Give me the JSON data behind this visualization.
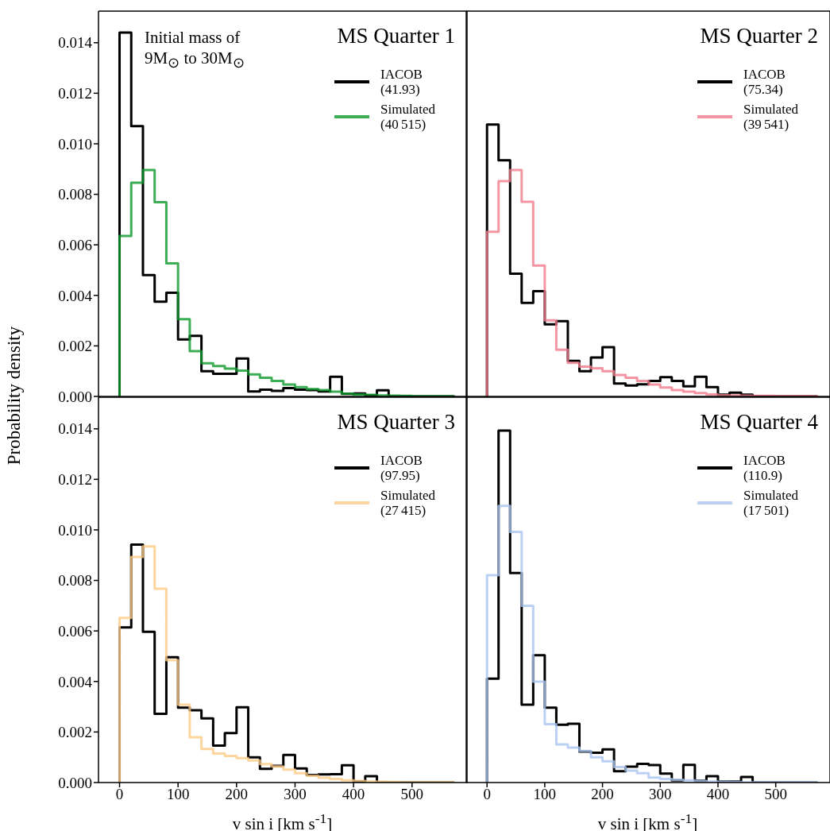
{
  "chart_data": [
    {
      "type": "histogram",
      "title": "MS Quarter 1",
      "ylabel": "Probability density",
      "annotations": [
        "Initial mass of 9M$_{⊙}$ to 30M$_{⊙}$"
      ],
      "legend": "top right",
      "tick_labels": "y",
      "bins": [
        0,
        20,
        40,
        60,
        80,
        100,
        120,
        140,
        160,
        180,
        200,
        220,
        240,
        260,
        280,
        300,
        320,
        340,
        360,
        380,
        400,
        420,
        440,
        460,
        480,
        500,
        520,
        540,
        560,
        572
      ],
      "xlim": [
        -36,
        594
      ],
      "xticks": [
        0,
        100,
        200,
        300,
        400,
        500
      ],
      "ylim": [
        0,
        0.01525
      ],
      "yticks": [
        {
          "value": 0,
          "label": "0.000"
        },
        {
          "value": 0.002,
          "label": "0.002"
        },
        {
          "value": 0.004,
          "label": "0.004"
        },
        {
          "value": 0.006,
          "label": "0.006"
        },
        {
          "value": 0.008,
          "label": "0.008"
        },
        {
          "value": 0.01,
          "label": "0.010"
        },
        {
          "value": 0.012,
          "label": "0.012"
        },
        {
          "value": 0.014,
          "label": "0.014"
        }
      ],
      "series": [
        {
          "name": "IACOB (41.93)",
          "color": "#000000",
          "values": [
            0.0144,
            0.0107,
            0.0048,
            0.00375,
            0.0041,
            0.00226,
            0.0024,
            0.001,
            0.0009,
            0.0009,
            0.0015,
            0.0002,
            0.00027,
            0.00022,
            0.00033,
            0.00027,
            0.00025,
            0.0002,
            0.00078,
            0.0001,
            0.00012,
            4e-05,
            0.00024,
            0,
            0,
            0,
            0,
            0,
            0
          ]
        },
        {
          "name": "Simulated (40 515)",
          "color": "#0c9a2c",
          "values": [
            0.00635,
            0.00846,
            0.00896,
            0.00769,
            0.00527,
            0.00306,
            0.00179,
            0.00131,
            0.0012,
            0.0011,
            0.00102,
            0.00087,
            0.00074,
            0.00061,
            0.00047,
            0.00037,
            0.00029,
            0.00025,
            0.00019,
            0.00011,
            8e-05,
            6e-05,
            4e-05,
            3e-05,
            2e-05,
            1e-05,
            1e-05,
            1e-05,
            1e-05
          ]
        }
      ]
    },
    {
      "type": "histogram",
      "title": "MS Quarter 2",
      "legend": "top right",
      "tick_labels": false,
      "bins": [
        0,
        20,
        40,
        60,
        80,
        100,
        120,
        140,
        160,
        180,
        200,
        220,
        240,
        260,
        280,
        300,
        320,
        340,
        360,
        380,
        400,
        420,
        440,
        460,
        480,
        500,
        520,
        540,
        560,
        572
      ],
      "xlim": [
        -36,
        594
      ],
      "xticks": [
        0,
        100,
        200,
        300,
        400,
        500
      ],
      "ylim": [
        0,
        0.01525
      ],
      "yticks": [
        {
          "value": 0,
          "label": null
        },
        {
          "value": 0.002,
          "label": null
        },
        {
          "value": 0.004,
          "label": null
        },
        {
          "value": 0.006,
          "label": null
        },
        {
          "value": 0.008,
          "label": null
        },
        {
          "value": 0.01,
          "label": null
        },
        {
          "value": 0.012,
          "label": null
        },
        {
          "value": 0.014,
          "label": null
        }
      ],
      "series": [
        {
          "name": "IACOB (75.34)",
          "color": "#000000",
          "values": [
            0.01076,
            0.00935,
            0.00486,
            0.0037,
            0.00417,
            0.00285,
            0.00298,
            0.00141,
            0.001,
            0.00154,
            0.00195,
            0.00051,
            0.00043,
            0.00048,
            0.00061,
            0.00076,
            0.00061,
            0.0004,
            0.00078,
            0.00037,
            7e-05,
            0.00015,
            7e-05,
            0,
            0,
            0,
            0,
            0,
            0
          ]
        },
        {
          "name": "Simulated (39 541)",
          "color": "#f07b8b",
          "values": [
            0.00652,
            0.00852,
            0.00896,
            0.0077,
            0.00518,
            0.00301,
            0.00185,
            0.00133,
            0.00118,
            0.00112,
            0.001,
            0.00085,
            0.00074,
            0.00061,
            0.00047,
            0.00035,
            0.00025,
            0.00019,
            0.00013,
            8e-05,
            5e-05,
            4e-05,
            3e-05,
            2e-05,
            2e-05,
            1e-05,
            1e-05,
            1e-05,
            1e-05
          ]
        }
      ]
    },
    {
      "type": "histogram",
      "title": "MS Quarter 3",
      "xlabel": "v sin i [km s$^{-1}$]",
      "legend": "top right",
      "bins": [
        0,
        20,
        40,
        60,
        80,
        100,
        120,
        140,
        160,
        180,
        200,
        220,
        240,
        260,
        280,
        300,
        320,
        340,
        360,
        380,
        400,
        420,
        440,
        460,
        480,
        500,
        520,
        540,
        560,
        572
      ],
      "xlim": [
        -36,
        594
      ],
      "xticks": [
        0,
        100,
        200,
        300,
        400,
        500
      ],
      "ylim": [
        0,
        0.01525
      ],
      "yticks": [
        {
          "value": 0,
          "label": "0.000"
        },
        {
          "value": 0.002,
          "label": "0.002"
        },
        {
          "value": 0.004,
          "label": "0.004"
        },
        {
          "value": 0.006,
          "label": "0.006"
        },
        {
          "value": 0.008,
          "label": "0.008"
        },
        {
          "value": 0.01,
          "label": "0.010"
        },
        {
          "value": 0.012,
          "label": "0.012"
        },
        {
          "value": 0.014,
          "label": "0.014"
        }
      ],
      "series": [
        {
          "name": "IACOB (97.95)",
          "color": "#000000",
          "values": [
            0.00614,
            0.00942,
            0.00597,
            0.00272,
            0.00496,
            0.00296,
            0.00286,
            0.00254,
            0.00146,
            0.00196,
            0.00298,
            0.001,
            0.00054,
            0.00066,
            0.00109,
            0.00056,
            0.0003,
            0.00032,
            0.00033,
            0.00068,
            4e-05,
            0.00025,
            0,
            0,
            0,
            0,
            0,
            0,
            0
          ]
        },
        {
          "name": "Simulated (27 415)",
          "color": "#fdca85",
          "values": [
            0.00652,
            0.00893,
            0.00935,
            0.00767,
            0.00484,
            0.00308,
            0.00179,
            0.00133,
            0.00115,
            0.00105,
            0.00097,
            0.00087,
            0.00073,
            0.00064,
            0.00051,
            0.00037,
            0.00027,
            0.00019,
            0.00014,
            9e-05,
            6e-05,
            4e-05,
            3e-05,
            2e-05,
            1e-05,
            1e-05,
            1e-05,
            1e-05,
            1e-05
          ]
        }
      ]
    },
    {
      "type": "histogram",
      "title": "MS Quarter 4",
      "xlabel": "v sin i [km s$^{-1}$]",
      "legend": "top right",
      "tick_labels": "x",
      "bins": [
        0,
        20,
        40,
        60,
        80,
        100,
        120,
        140,
        160,
        180,
        200,
        220,
        240,
        260,
        280,
        300,
        320,
        340,
        360,
        380,
        400,
        420,
        440,
        460,
        480,
        500,
        520,
        540,
        560,
        572
      ],
      "xlim": [
        -36,
        594
      ],
      "xticks": [
        0,
        100,
        200,
        300,
        400,
        500
      ],
      "ylim": [
        0,
        0.01525
      ],
      "yticks": [
        {
          "value": 0,
          "label": null
        },
        {
          "value": 0.002,
          "label": null
        },
        {
          "value": 0.004,
          "label": null
        },
        {
          "value": 0.006,
          "label": null
        },
        {
          "value": 0.008,
          "label": null
        },
        {
          "value": 0.01,
          "label": null
        },
        {
          "value": 0.012,
          "label": null
        },
        {
          "value": 0.014,
          "label": null
        }
      ],
      "series": [
        {
          "name": "IACOB (110.9)",
          "color": "#000000",
          "values": [
            0.00411,
            0.01393,
            0.00829,
            0.00308,
            0.00504,
            0.00296,
            0.00229,
            0.00233,
            0.00123,
            0.00118,
            0.00131,
            0.00045,
            0.00063,
            0.00074,
            0.00069,
            0.00035,
            9e-05,
            0.0007,
            7e-05,
            0.00025,
            4e-05,
            4e-05,
            0.00022,
            0,
            0,
            0,
            0,
            0,
            0
          ]
        },
        {
          "name": "Simulated (17 501)",
          "color": "#a9c6f1",
          "values": [
            0.00821,
            0.01095,
            0.00992,
            0.007,
            0.00399,
            0.00231,
            0.00151,
            0.00138,
            0.00125,
            0.001,
            0.00084,
            0.00061,
            0.00047,
            0.00037,
            0.0002,
            0.00014,
            0.00011,
            9e-05,
            6e-05,
            4e-05,
            3e-05,
            2e-05,
            1e-05,
            1e-05,
            1e-05,
            1e-05,
            1e-05,
            1e-05,
            1e-05
          ]
        }
      ]
    }
  ]
}
